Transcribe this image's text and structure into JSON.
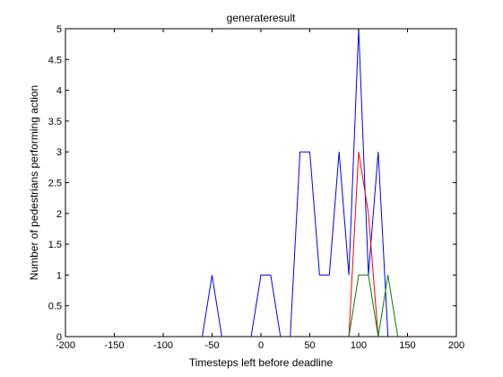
{
  "chart_data": {
    "type": "line",
    "title": "generateresult",
    "xlabel": "Timesteps left before deadline",
    "ylabel": "Number of pedestrians performing action",
    "xlim": [
      -200,
      200
    ],
    "ylim": [
      0,
      5
    ],
    "xticks": [
      -200,
      -150,
      -100,
      -50,
      0,
      50,
      100,
      150,
      200
    ],
    "yticks": [
      0,
      0.5,
      1,
      1.5,
      2,
      2.5,
      3,
      3.5,
      4,
      4.5,
      5
    ],
    "xtick_labels": [
      "-200",
      "-150",
      "-100",
      "-50",
      "0",
      "50",
      "100",
      "150",
      "200"
    ],
    "ytick_labels": [
      "0",
      "0.5",
      "1",
      "1.5",
      "2",
      "2.5",
      "3",
      "3.5",
      "4",
      "4.5",
      "5"
    ],
    "grid": false,
    "series": [
      {
        "color": "#0000ff",
        "x": [
          -60,
          -50,
          -40,
          -10,
          0,
          10,
          20,
          30,
          40,
          50,
          60,
          70,
          80,
          90,
          100,
          110,
          120,
          130
        ],
        "y": [
          0,
          1,
          0,
          0,
          1,
          1,
          0,
          0,
          3,
          3,
          1,
          1,
          3,
          1,
          5,
          1,
          3,
          0
        ]
      },
      {
        "color": "#ff0000",
        "x": [
          90,
          100,
          110,
          120
        ],
        "y": [
          0,
          3,
          2,
          0
        ]
      },
      {
        "color": "#008000",
        "x": [
          90,
          100,
          110,
          120,
          130,
          140
        ],
        "y": [
          0,
          1,
          1,
          0,
          1,
          0
        ]
      }
    ]
  }
}
